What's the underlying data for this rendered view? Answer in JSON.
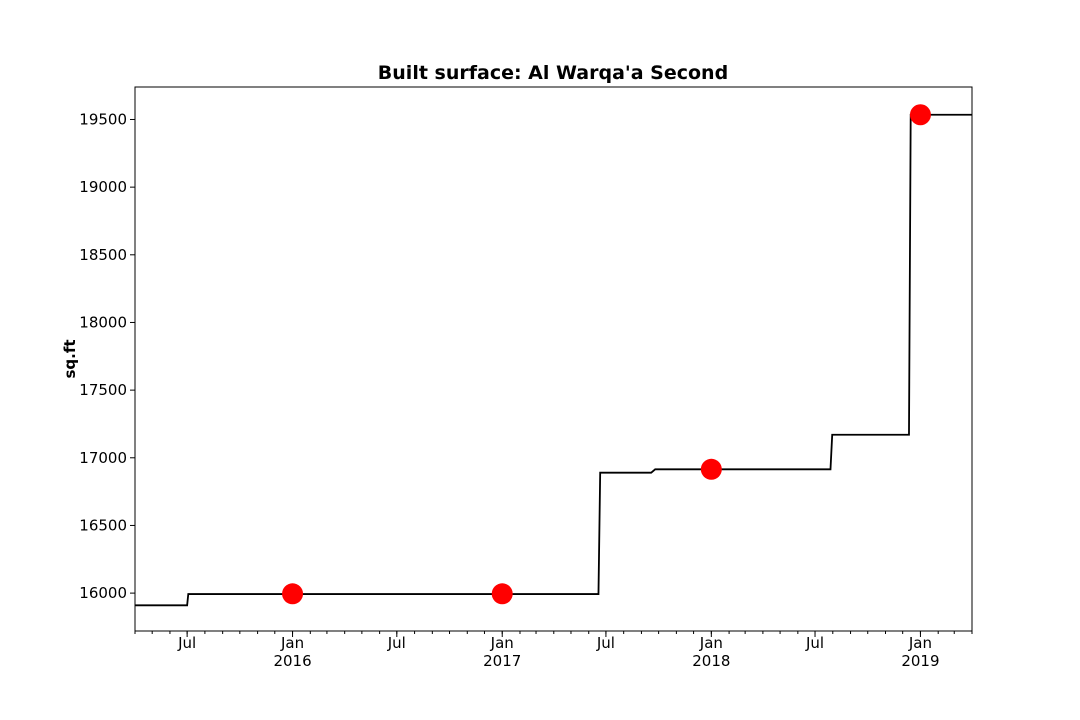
{
  "chart_data": {
    "type": "line",
    "title": "Built surface: Al Warqa'a Second",
    "xlabel": "",
    "ylabel": "sq.ft",
    "xlim": [
      "2015-04-01",
      "2019-04-01"
    ],
    "ylim": [
      15720,
      19740
    ],
    "y_ticks": [
      16000,
      16500,
      17000,
      17500,
      18000,
      18500,
      19000,
      19500
    ],
    "x_ticks": [
      {
        "date": "2015-07-01",
        "label": "Jul",
        "sublabel": ""
      },
      {
        "date": "2016-01-01",
        "label": "Jan",
        "sublabel": "2016"
      },
      {
        "date": "2016-07-01",
        "label": "Jul",
        "sublabel": ""
      },
      {
        "date": "2017-01-01",
        "label": "Jan",
        "sublabel": "2017"
      },
      {
        "date": "2017-07-01",
        "label": "Jul",
        "sublabel": ""
      },
      {
        "date": "2018-01-01",
        "label": "Jan",
        "sublabel": "2018"
      },
      {
        "date": "2018-07-01",
        "label": "Jul",
        "sublabel": ""
      },
      {
        "date": "2019-01-01",
        "label": "Jan",
        "sublabel": "2019"
      }
    ],
    "grid": false,
    "series": [
      {
        "line_color": "#000000",
        "marker_color": "#ff0000",
        "line_points": [
          {
            "x": "2015-04-01",
            "y": 15910
          },
          {
            "x": "2015-07-01",
            "y": 15910
          },
          {
            "x": "2015-07-03",
            "y": 15993
          },
          {
            "x": "2017-06-18",
            "y": 15993
          },
          {
            "x": "2017-06-21",
            "y": 16890
          },
          {
            "x": "2017-09-18",
            "y": 16890
          },
          {
            "x": "2017-09-25",
            "y": 16915
          },
          {
            "x": "2018-07-28",
            "y": 16915
          },
          {
            "x": "2018-07-31",
            "y": 17170
          },
          {
            "x": "2018-12-12",
            "y": 17170
          },
          {
            "x": "2018-12-15",
            "y": 19535
          },
          {
            "x": "2019-04-01",
            "y": 19535
          }
        ],
        "markers": [
          {
            "x": "2016-01-01",
            "y": 15995
          },
          {
            "x": "2017-01-01",
            "y": 15995
          },
          {
            "x": "2018-01-01",
            "y": 16915
          },
          {
            "x": "2019-01-01",
            "y": 19535
          }
        ]
      }
    ]
  }
}
